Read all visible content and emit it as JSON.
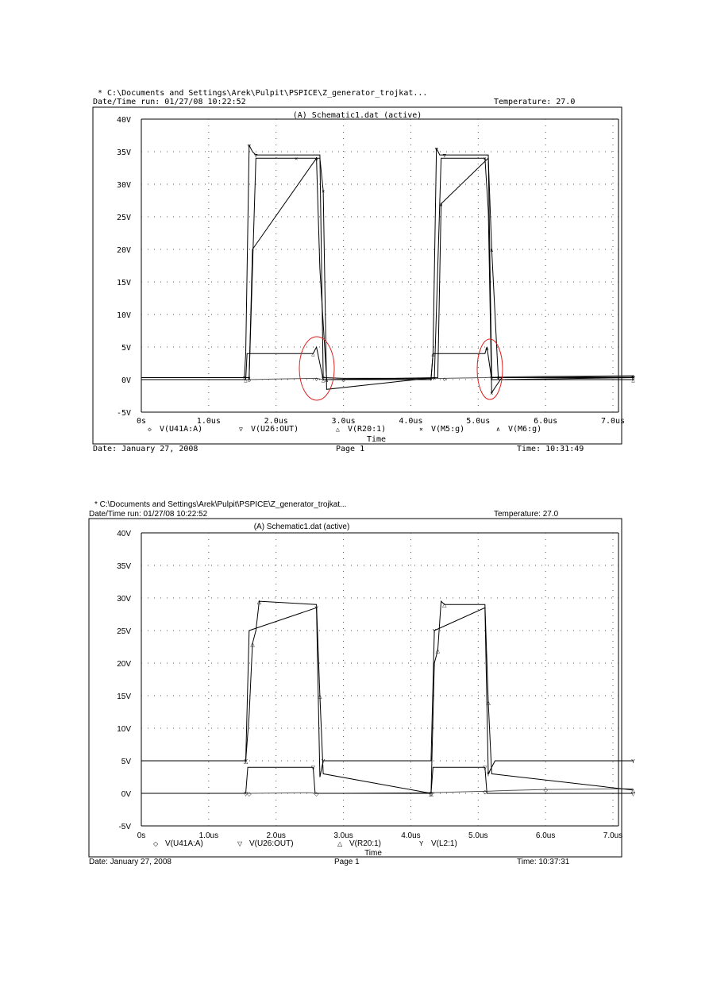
{
  "plots": [
    {
      "path": "* C:\\Documents and Settings\\Arek\\Pulpit\\PSPICE\\Z_generator_trojkat...",
      "run": "Date/Time run: 01/27/08 10:22:52",
      "temperature": "Temperature: 27.0",
      "date": "Date: January 27, 2008",
      "page": "Page 1",
      "time": "Time: 10:31:49",
      "chart_data": {
        "type": "line",
        "title": "(A) Schematic1.dat (active)",
        "xlabel": "Time",
        "ylabel": "",
        "xlim": [
          0,
          7.3
        ],
        "ylim": [
          -5,
          40
        ],
        "grid": true,
        "x_unit": "us",
        "x_ticks": [
          "0s",
          "1.0us",
          "2.0us",
          "3.0us",
          "4.0us",
          "5.0us",
          "6.0us",
          "7.0us"
        ],
        "y_ticks": [
          "-5V",
          "0V",
          "5V",
          "10V",
          "15V",
          "20V",
          "25V",
          "30V",
          "35V",
          "40V"
        ],
        "legend": [
          {
            "marker": "◇",
            "label": "V(U41A:A)"
          },
          {
            "marker": "▽",
            "label": "V(U26:OUT)"
          },
          {
            "marker": "△",
            "label": "V(R20:1)"
          },
          {
            "marker": "×",
            "label": "V(M5:g)"
          },
          {
            "marker": "∧",
            "label": "V(M6:g)"
          }
        ],
        "series": [
          {
            "name": "V(U41A:A)",
            "x": [
              0,
              1.6,
              2.0,
              2.6,
              2.7,
              3.0,
              4.0,
              4.5,
              5.1,
              5.3,
              6.0,
              7.3
            ],
            "y": [
              0,
              0,
              0.1,
              0.2,
              0,
              0,
              0.1,
              0.2,
              0.3,
              0.4,
              0.5,
              0.6
            ]
          },
          {
            "name": "V(U26:OUT)",
            "x": [
              0,
              1.53,
              1.55,
              1.6,
              1.65,
              1.7,
              2.65,
              2.7,
              3.0,
              4.3,
              4.33,
              4.38,
              4.43,
              4.5,
              5.15,
              5.2,
              5.3,
              7.3
            ],
            "y": [
              0.3,
              0.3,
              4,
              36,
              35,
              34.5,
              34.5,
              0.3,
              0.2,
              0.2,
              4,
              35.5,
              34.5,
              34.5,
              34.5,
              0.3,
              0.3,
              0.3
            ]
          },
          {
            "name": "V(R20:1)",
            "x": [
              0,
              1.55,
              1.57,
              2.55,
              2.6,
              2.7,
              4.3,
              4.33,
              5.1,
              5.13,
              5.2,
              7.3
            ],
            "y": [
              0,
              0,
              4,
              4,
              5,
              0,
              0,
              4,
              4,
              5,
              0,
              0
            ]
          },
          {
            "name": "V(M5:g)",
            "x": [
              0,
              1.6,
              1.7,
              2.3,
              2.65,
              2.7,
              2.75,
              4.35,
              4.45,
              5.1,
              5.15,
              5.2,
              5.35,
              7.3
            ],
            "y": [
              0.3,
              0.3,
              34,
              34,
              34,
              29,
              -1.5,
              0.3,
              34,
              34,
              26,
              -2,
              0.3,
              0.5
            ]
          },
          {
            "name": "V(M6:g)",
            "x": [
              0,
              1.6,
              1.65,
              2.6,
              2.65,
              2.75,
              4.4,
              4.45,
              5.15,
              5.2,
              5.3,
              7.3
            ],
            "y": [
              0.3,
              0.3,
              20,
              34,
              17,
              0,
              0.3,
              27,
              34,
              20,
              0,
              0.3
            ]
          }
        ]
      }
    },
    {
      "path": "* C:\\Documents and Settings\\Arek\\Pulpit\\PSPICE\\Z_generator_trojkat...",
      "run": "Date/Time run: 01/27/08 10:22:52",
      "temperature": "Temperature: 27.0",
      "date": "Date: January 27, 2008",
      "page": "Page 1",
      "time": "Time: 10:37:31",
      "chart_data": {
        "type": "line",
        "title": "(A) Schematic1.dat (active)",
        "xlabel": "Time",
        "ylabel": "",
        "xlim": [
          0,
          7.3
        ],
        "ylim": [
          -5,
          40
        ],
        "grid": true,
        "x_unit": "us",
        "x_ticks": [
          "0s",
          "1.0us",
          "2.0us",
          "3.0us",
          "4.0us",
          "5.0us",
          "6.0us",
          "7.0us"
        ],
        "y_ticks": [
          "-5V",
          "0V",
          "5V",
          "10V",
          "15V",
          "20V",
          "25V",
          "30V",
          "35V",
          "40V"
        ],
        "legend": [
          {
            "marker": "◇",
            "label": "V(U41A:A)"
          },
          {
            "marker": "▽",
            "label": "V(U26:OUT)"
          },
          {
            "marker": "△",
            "label": "V(R20:1)"
          },
          {
            "marker": "Y",
            "label": "V(L2:1)"
          }
        ],
        "series": [
          {
            "name": "V(U41A:A)",
            "x": [
              0,
              1.6,
              2.5,
              2.6,
              3.0,
              4.3,
              5.0,
              5.1,
              5.3,
              6.0,
              7.3
            ],
            "y": [
              0,
              0,
              0.1,
              0,
              0,
              0.1,
              0.3,
              0.3,
              0.4,
              0.6,
              0.7
            ]
          },
          {
            "name": "V(U26:OUT)",
            "x": [
              0,
              1.55,
              1.58,
              2.55,
              2.58,
              4.3,
              4.33,
              5.1,
              5.13,
              7.3
            ],
            "y": [
              0,
              0,
              4,
              4,
              0,
              0,
              4,
              4,
              0,
              0
            ]
          },
          {
            "name": "V(R20:1)",
            "x": [
              0,
              1.55,
              1.6,
              1.65,
              1.7,
              1.75,
              2.6,
              2.65,
              2.7,
              4.3,
              4.35,
              4.4,
              4.45,
              4.5,
              5.1,
              5.15,
              5.2,
              7.3
            ],
            "y": [
              5,
              5,
              12,
              23,
              25,
              29.5,
              29,
              15,
              3,
              0,
              20,
              22,
              29.5,
              29,
              29,
              14,
              3,
              0.5
            ]
          },
          {
            "name": "V(L2:1)",
            "x": [
              0,
              1.55,
              1.6,
              2.6,
              2.65,
              2.7,
              4.3,
              4.35,
              5.1,
              5.15,
              5.25,
              7.3
            ],
            "y": [
              5,
              5,
              25,
              28.5,
              2.5,
              5,
              5,
              25,
              28.5,
              3,
              5,
              5
            ]
          }
        ]
      }
    }
  ]
}
